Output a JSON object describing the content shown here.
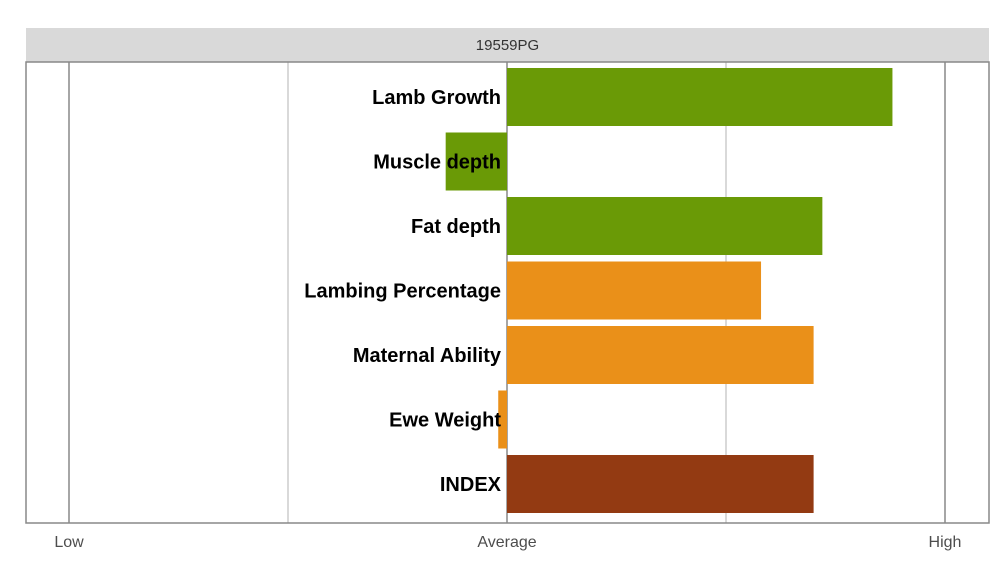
{
  "chart_data": {
    "type": "bar",
    "title": "19559PG",
    "orientation": "horizontal",
    "categories": [
      "Lamb Growth",
      "Muscle depth",
      "Fat depth",
      "Lambing Percentage",
      "Maternal Ability",
      "Ewe Weight",
      "INDEX"
    ],
    "values": [
      0.88,
      -0.14,
      0.72,
      0.58,
      0.7,
      -0.02,
      0.7
    ],
    "bar_colors": [
      "#6a9a06",
      "#6a9a06",
      "#6a9a06",
      "#ea9019",
      "#ea9019",
      "#ea9019",
      "#933a12"
    ],
    "xlim": [
      -1.1,
      1.1
    ],
    "x_ticks": [
      {
        "value": -1,
        "label": "Low"
      },
      {
        "value": 0,
        "label": "Average"
      },
      {
        "value": 1,
        "label": "High"
      }
    ],
    "minor_gridlines": [
      -0.5,
      0.5
    ],
    "grid": true,
    "legend": "none",
    "colors": {
      "strip_background": "#d9d9d9",
      "major_grid": "#888888",
      "minor_grid": "#b3b3b3",
      "panel_border": "#888888"
    }
  }
}
